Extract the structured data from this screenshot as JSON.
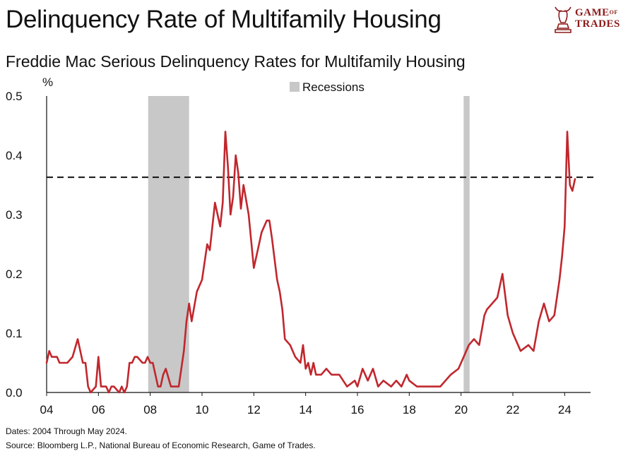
{
  "header": {
    "title": "Delinquency Rate of Multifamily Housing",
    "subtitle": "Freddie Mac Serious Delinquency Rates for Multifamily Housing"
  },
  "logo": {
    "line1": "GAME",
    "of": "OF",
    "line2": "TRADES",
    "icon": "bull-chess-knight-icon",
    "color": "#8b1a1a"
  },
  "footer": {
    "dates": "Dates: 2004 Through May 2024.",
    "source": "Source: Bloomberg L.P., National Bureau of Economic Research, Game of Trades."
  },
  "chart_data": {
    "type": "line",
    "ylabel": "%",
    "ylim": [
      0,
      0.5
    ],
    "xlim": [
      2004,
      2025
    ],
    "y_ticks": [
      "0.0",
      "0.1",
      "0.2",
      "0.3",
      "0.4",
      "0.5"
    ],
    "y_tick_values": [
      0,
      0.1,
      0.2,
      0.3,
      0.4,
      0.5
    ],
    "x_ticks": [
      "04",
      "06",
      "08",
      "10",
      "12",
      "14",
      "16",
      "18",
      "20",
      "22",
      "24"
    ],
    "x_tick_values": [
      2004,
      2006,
      2008,
      2010,
      2012,
      2014,
      2016,
      2018,
      2020,
      2022,
      2024
    ],
    "legend": {
      "label": "Recessions",
      "placement": "top-center",
      "color": "#c8c8c8"
    },
    "recessions": [
      {
        "start": 2007.92,
        "end": 2009.5
      },
      {
        "start": 2020.1,
        "end": 2020.33
      }
    ],
    "reference_line": {
      "value": 0.363,
      "style": "dashed"
    },
    "series": [
      {
        "color": "#c0272d",
        "x": [
          2004.0,
          2004.1,
          2004.2,
          2004.4,
          2004.5,
          2004.6,
          2004.8,
          2005.0,
          2005.2,
          2005.4,
          2005.5,
          2005.6,
          2005.7,
          2005.9,
          2006.0,
          2006.1,
          2006.3,
          2006.4,
          2006.5,
          2006.6,
          2006.8,
          2006.9,
          2007.0,
          2007.1,
          2007.2,
          2007.3,
          2007.4,
          2007.5,
          2007.7,
          2007.8,
          2007.9,
          2008.0,
          2008.1,
          2008.3,
          2008.4,
          2008.5,
          2008.6,
          2008.8,
          2008.9,
          2009.0,
          2009.1,
          2009.3,
          2009.4,
          2009.5,
          2009.6,
          2009.8,
          2010.0,
          2010.2,
          2010.3,
          2010.5,
          2010.7,
          2010.8,
          2010.9,
          2011.0,
          2011.1,
          2011.2,
          2011.3,
          2011.4,
          2011.5,
          2011.6,
          2011.8,
          2012.0,
          2012.2,
          2012.3,
          2012.5,
          2012.6,
          2012.7,
          2012.9,
          2013.0,
          2013.1,
          2013.2,
          2013.4,
          2013.6,
          2013.8,
          2013.9,
          2014.0,
          2014.1,
          2014.2,
          2014.3,
          2014.4,
          2014.6,
          2014.8,
          2015.0,
          2015.3,
          2015.6,
          2015.9,
          2016.0,
          2016.2,
          2016.4,
          2016.6,
          2016.8,
          2017.0,
          2017.3,
          2017.5,
          2017.7,
          2017.9,
          2018.0,
          2018.3,
          2018.7,
          2019.0,
          2019.2,
          2019.6,
          2019.9,
          2020.0,
          2020.3,
          2020.5,
          2020.7,
          2020.9,
          2021.0,
          2021.2,
          2021.4,
          2021.6,
          2021.8,
          2022.0,
          2022.3,
          2022.6,
          2022.8,
          2023.0,
          2023.2,
          2023.4,
          2023.6,
          2023.8,
          2023.9,
          2024.0,
          2024.1,
          2024.2,
          2024.3,
          2024.4
        ],
        "y": [
          0.05,
          0.07,
          0.06,
          0.06,
          0.05,
          0.05,
          0.05,
          0.06,
          0.09,
          0.05,
          0.05,
          0.01,
          0.0,
          0.01,
          0.06,
          0.01,
          0.01,
          0.0,
          0.01,
          0.01,
          0.0,
          0.01,
          0.0,
          0.01,
          0.05,
          0.05,
          0.06,
          0.06,
          0.05,
          0.05,
          0.06,
          0.05,
          0.05,
          0.01,
          0.01,
          0.03,
          0.04,
          0.01,
          0.01,
          0.01,
          0.01,
          0.07,
          0.12,
          0.15,
          0.12,
          0.17,
          0.19,
          0.25,
          0.24,
          0.32,
          0.28,
          0.32,
          0.44,
          0.38,
          0.3,
          0.33,
          0.4,
          0.37,
          0.31,
          0.35,
          0.3,
          0.21,
          0.25,
          0.27,
          0.29,
          0.29,
          0.26,
          0.19,
          0.17,
          0.14,
          0.09,
          0.08,
          0.06,
          0.05,
          0.08,
          0.04,
          0.05,
          0.03,
          0.05,
          0.03,
          0.03,
          0.04,
          0.03,
          0.03,
          0.01,
          0.02,
          0.01,
          0.04,
          0.02,
          0.04,
          0.01,
          0.02,
          0.01,
          0.02,
          0.01,
          0.03,
          0.02,
          0.01,
          0.01,
          0.01,
          0.01,
          0.03,
          0.04,
          0.05,
          0.08,
          0.09,
          0.08,
          0.13,
          0.14,
          0.15,
          0.16,
          0.2,
          0.13,
          0.1,
          0.07,
          0.08,
          0.07,
          0.12,
          0.15,
          0.12,
          0.13,
          0.19,
          0.23,
          0.28,
          0.44,
          0.35,
          0.34,
          0.36
        ]
      }
    ]
  }
}
